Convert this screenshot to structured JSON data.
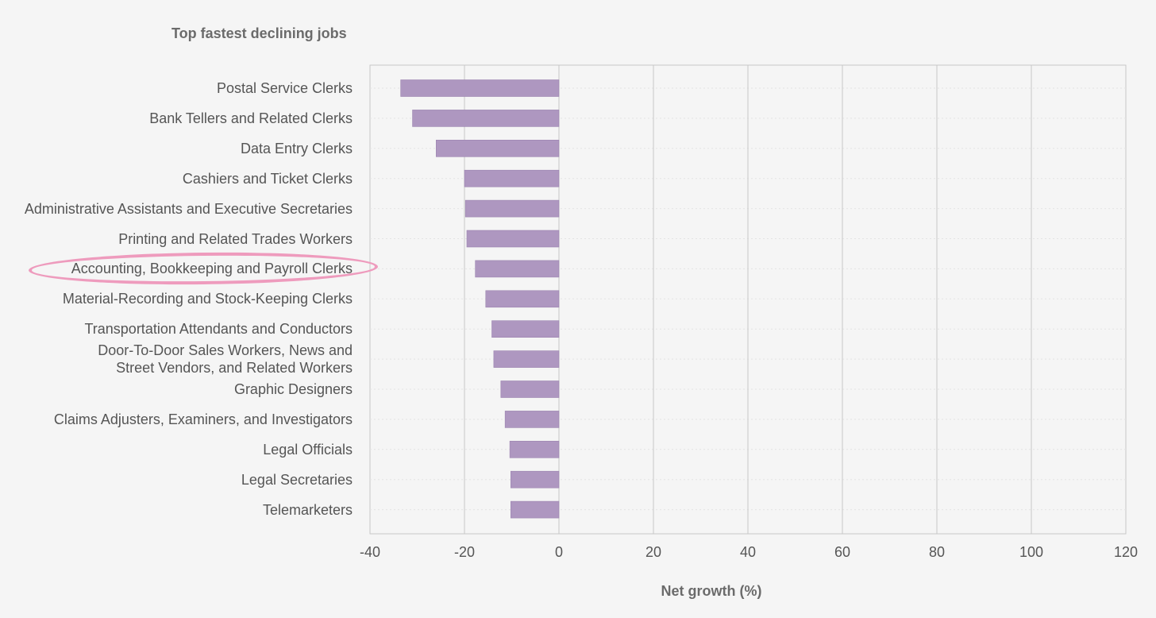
{
  "chart_data": {
    "type": "bar",
    "orientation": "horizontal",
    "title": "Top fastest declining jobs",
    "xlabel": "Net growth (%)",
    "ylabel": "",
    "xlim": [
      -40,
      120
    ],
    "xticks": [
      "-40",
      "-20",
      "0",
      "20",
      "40",
      "60",
      "80",
      "100",
      "120"
    ],
    "grid": "vertical",
    "bar_color": "#ae97c0",
    "categories": [
      "Postal Service Clerks",
      "Bank Tellers and Related Clerks",
      "Data Entry Clerks",
      "Cashiers and Ticket Clerks",
      "Administrative Assistants and Executive Secretaries",
      "Printing and Related Trades Workers",
      "Accounting, Bookkeeping and Payroll Clerks",
      "Material-Recording and Stock-Keeping Clerks",
      "Transportation Attendants and Conductors",
      "Door-To-Door Sales Workers, News and\nStreet Vendors, and Related Workers",
      "Graphic Designers",
      "Claims Adjusters, Examiners, and Investigators",
      "Legal Officials",
      "Legal Secretaries",
      "Telemarketers"
    ],
    "values": [
      -33.5,
      -31,
      -26,
      -20,
      -19.8,
      -19.5,
      -17.7,
      -15.5,
      -14.2,
      -13.8,
      -12.3,
      -11.4,
      -10.4,
      -10.2,
      -10.2
    ],
    "highlighted_category": "Accounting, Bookkeeping and Payroll Clerks",
    "highlight_color": "#ee9bbd"
  }
}
